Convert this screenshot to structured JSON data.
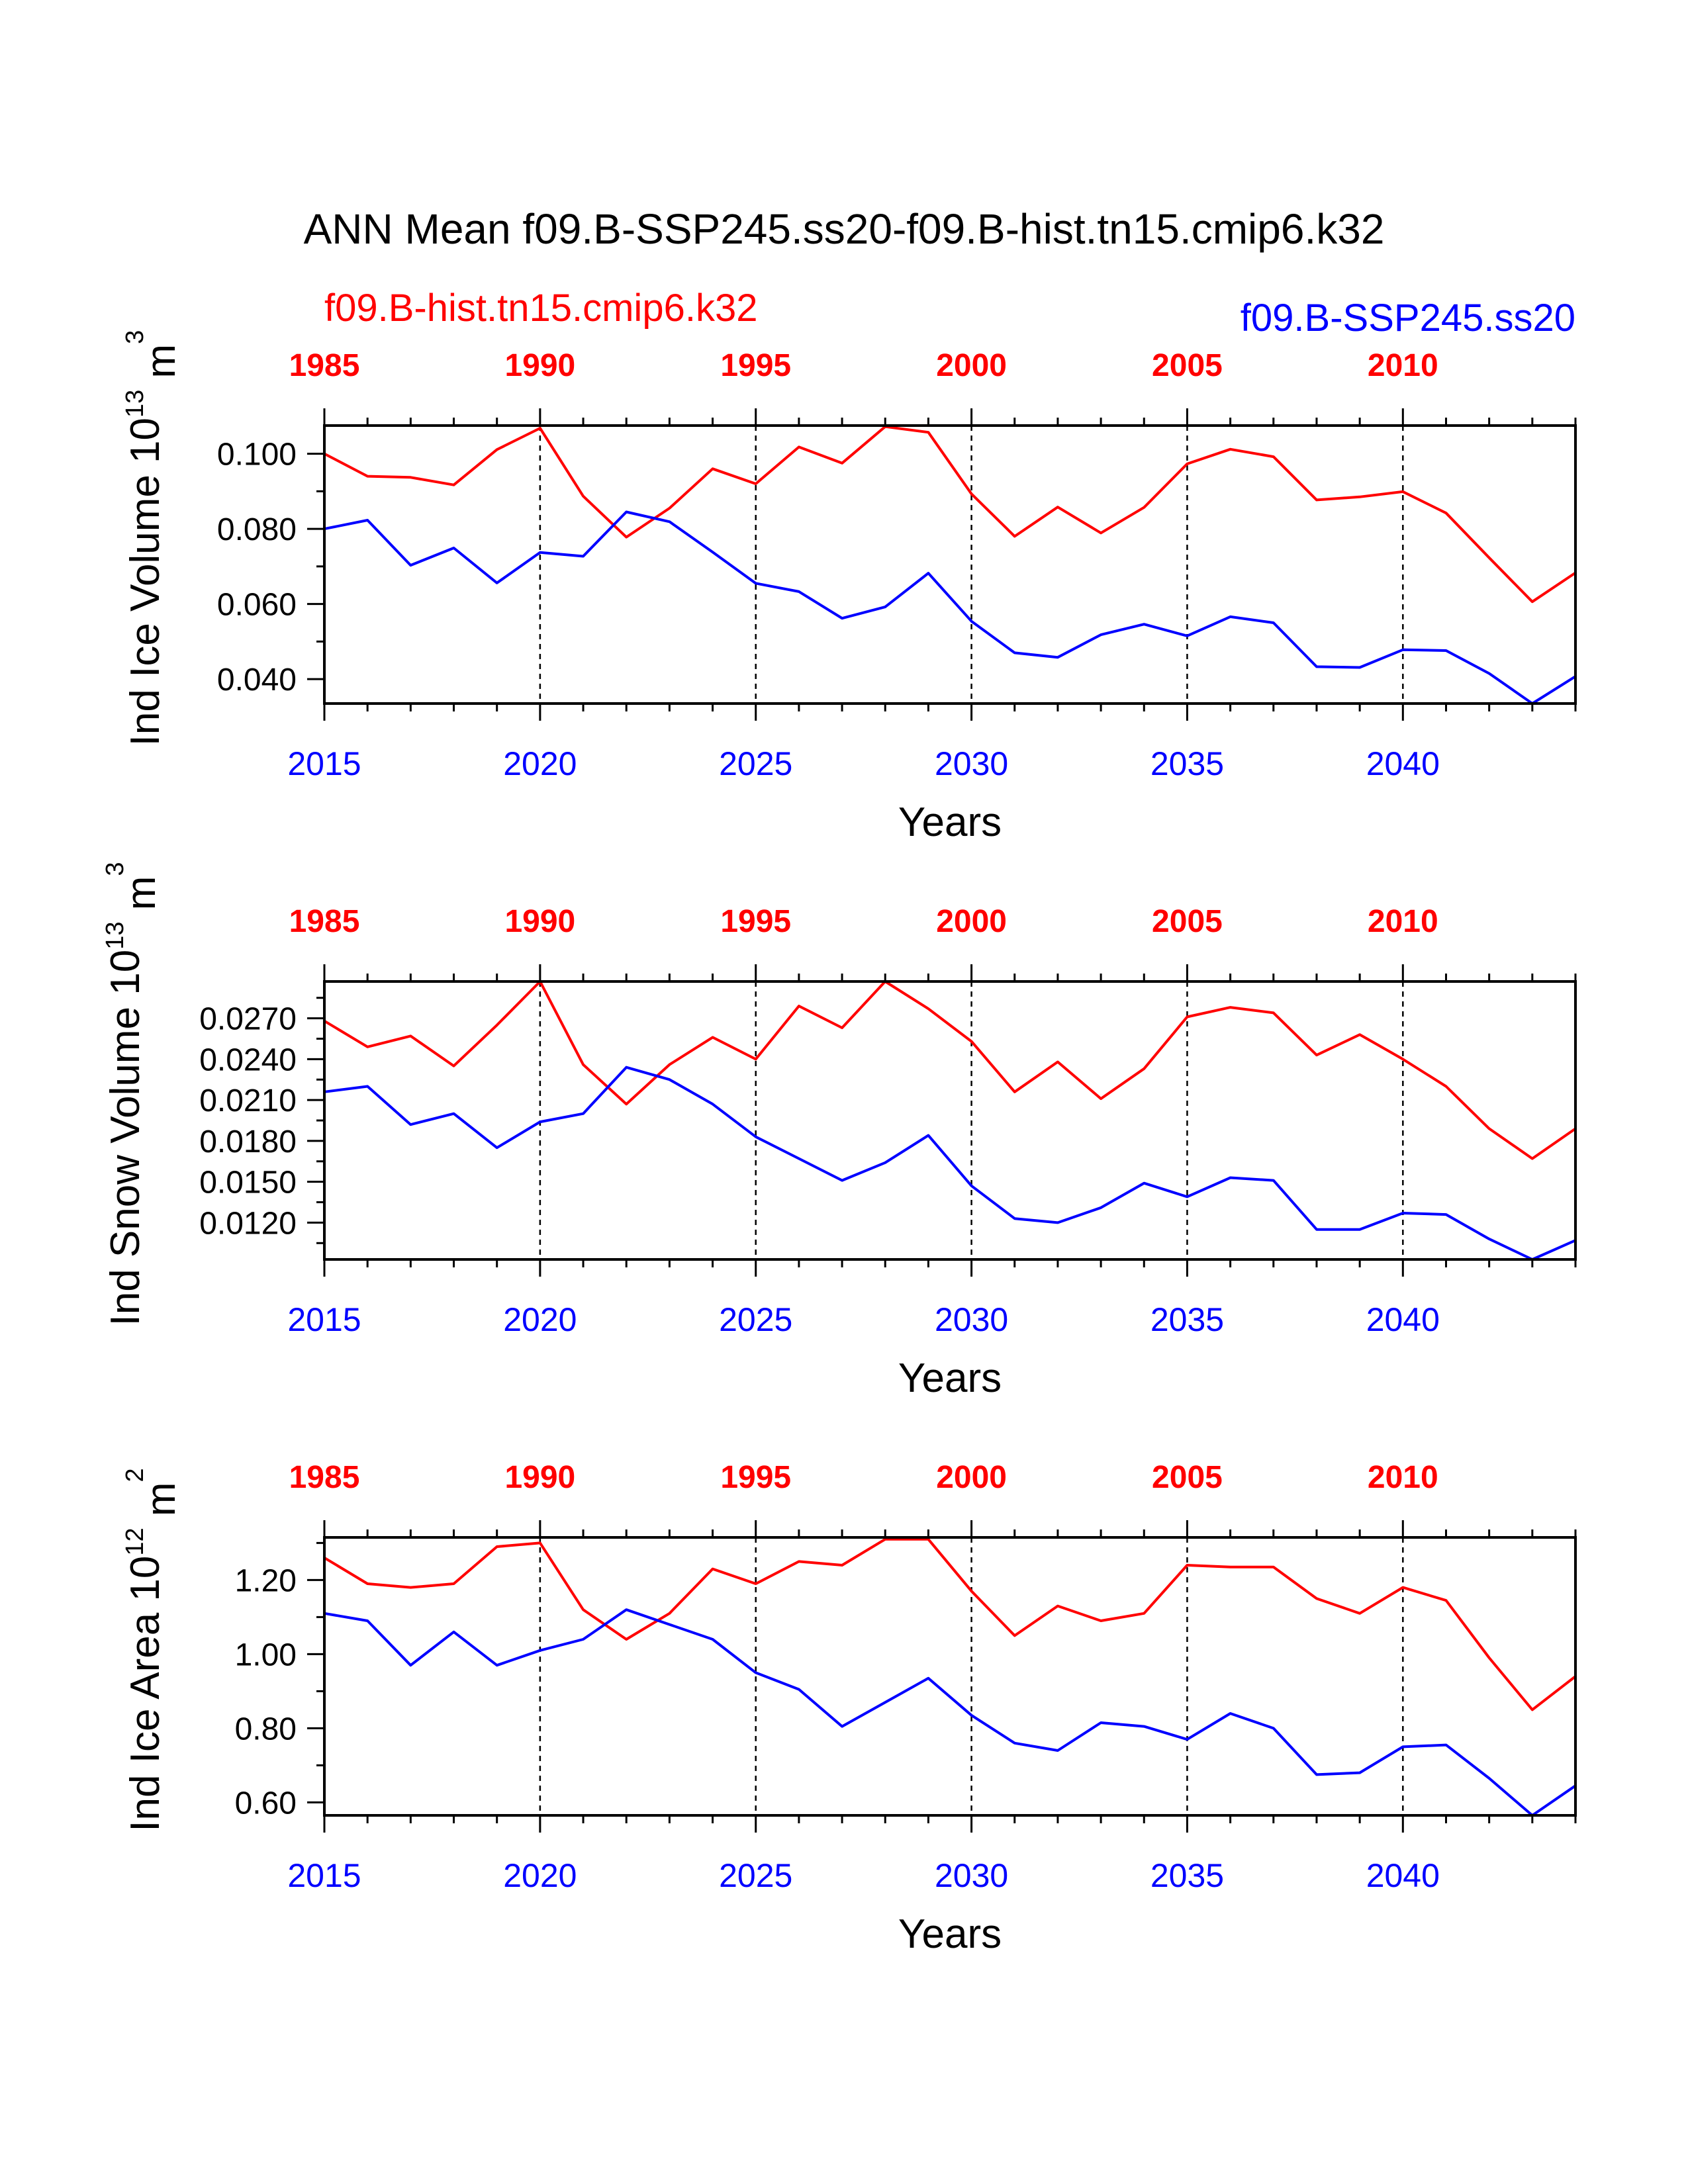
{
  "title": "ANN Mean f09.B-SSP245.ss20-f09.B-hist.tn15.cmip6.k32",
  "legend": {
    "left": "f09.B-hist.tn15.cmip6.k32",
    "right": "f09.B-SSP245.ss20"
  },
  "colors": {
    "hist": "#ff0000",
    "ssp": "#0000ff",
    "axis": "#000000"
  },
  "chart_data": [
    {
      "type": "line",
      "ylabel": "Ind Ice Volume 10",
      "ylabel_exp": "13",
      "ylabel_unit": "m",
      "ylabel_unit_exp": "3",
      "xlabel": "Years",
      "ylim": [
        0.0335,
        0.1075
      ],
      "yticks": [
        0.04,
        0.06,
        0.08,
        0.1
      ],
      "ytick_labels": [
        "0.040",
        "0.060",
        "0.080",
        "0.100"
      ],
      "x_bottom": [
        2015,
        2016,
        2017,
        2018,
        2019,
        2020,
        2021,
        2022,
        2023,
        2024,
        2025,
        2026,
        2027,
        2028,
        2029,
        2030,
        2031,
        2032,
        2033,
        2034,
        2035,
        2036,
        2037,
        2038,
        2039,
        2040,
        2041,
        2042,
        2043,
        2044
      ],
      "x_bottom_ticks": [
        "2015",
        "2020",
        "2025",
        "2030",
        "2035",
        "2040"
      ],
      "x_top_ticks": [
        "1985",
        "1990",
        "1995",
        "2000",
        "2005",
        "2010"
      ],
      "grid_x_dashed": true,
      "series": [
        {
          "name": "f09.B-hist.tn15.cmip6.k32",
          "key": "hist",
          "values": [
            0.1,
            0.094,
            0.0937,
            0.0917,
            0.1011,
            0.1068,
            0.0887,
            0.0778,
            0.0855,
            0.096,
            0.092,
            0.1018,
            0.0975,
            0.1072,
            0.1057,
            0.0893,
            0.078,
            0.0858,
            0.0789,
            0.0857,
            0.0973,
            0.1012,
            0.0992,
            0.0877,
            0.0885,
            0.0899,
            0.0842,
            0.0723,
            0.0606,
            0.0683
          ]
        },
        {
          "name": "f09.B-SSP245.ss20",
          "key": "ssp",
          "values": [
            0.08,
            0.0823,
            0.0703,
            0.0749,
            0.0656,
            0.0737,
            0.0727,
            0.0845,
            0.0819,
            0.0738,
            0.0655,
            0.0633,
            0.0562,
            0.0592,
            0.0682,
            0.0554,
            0.047,
            0.0458,
            0.0518,
            0.0546,
            0.0515,
            0.0566,
            0.055,
            0.0433,
            0.0431,
            0.0478,
            0.0476,
            0.0415,
            0.0335,
            0.0407
          ]
        }
      ]
    },
    {
      "type": "line",
      "ylabel": "Ind Snow Volume 10",
      "ylabel_exp": "13",
      "ylabel_unit": "m",
      "ylabel_unit_exp": "3",
      "xlabel": "Years",
      "ylim": [
        0.0093,
        0.0297
      ],
      "yticks": [
        0.012,
        0.015,
        0.018,
        0.021,
        0.024,
        0.027
      ],
      "ytick_labels": [
        "0.0120",
        "0.0150",
        "0.0180",
        "0.0210",
        "0.0240",
        "0.0270"
      ],
      "x_bottom": [
        2015,
        2016,
        2017,
        2018,
        2019,
        2020,
        2021,
        2022,
        2023,
        2024,
        2025,
        2026,
        2027,
        2028,
        2029,
        2030,
        2031,
        2032,
        2033,
        2034,
        2035,
        2036,
        2037,
        2038,
        2039,
        2040,
        2041,
        2042,
        2043,
        2044
      ],
      "x_bottom_ticks": [
        "2015",
        "2020",
        "2025",
        "2030",
        "2035",
        "2040"
      ],
      "x_top_ticks": [
        "1985",
        "1990",
        "1995",
        "2000",
        "2005",
        "2010"
      ],
      "grid_x_dashed": true,
      "series": [
        {
          "name": "f09.B-hist.tn15.cmip6.k32",
          "key": "hist",
          "values": [
            0.0268,
            0.0249,
            0.0257,
            0.0235,
            0.0265,
            0.0297,
            0.0236,
            0.0207,
            0.0236,
            0.0256,
            0.024,
            0.0279,
            0.0263,
            0.0297,
            0.0277,
            0.0253,
            0.0216,
            0.0238,
            0.0211,
            0.0233,
            0.0271,
            0.0278,
            0.0274,
            0.0243,
            0.0258,
            0.024,
            0.022,
            0.0189,
            0.0167,
            0.0189
          ]
        },
        {
          "name": "f09.B-SSP245.ss20",
          "key": "ssp",
          "values": [
            0.0216,
            0.022,
            0.0192,
            0.02,
            0.0175,
            0.0194,
            0.02,
            0.0234,
            0.0225,
            0.0207,
            0.0183,
            0.0167,
            0.0151,
            0.0164,
            0.0184,
            0.0147,
            0.0123,
            0.012,
            0.0131,
            0.0149,
            0.0139,
            0.0153,
            0.0151,
            0.0115,
            0.0115,
            0.0127,
            0.0126,
            0.0108,
            0.0093,
            0.0107
          ]
        }
      ]
    },
    {
      "type": "line",
      "ylabel": "Ind Ice Area 10",
      "ylabel_exp": "12",
      "ylabel_unit": "m",
      "ylabel_unit_exp": "2",
      "xlabel": "Years",
      "ylim": [
        0.565,
        1.315
      ],
      "yticks": [
        0.6,
        0.8,
        1.0,
        1.2
      ],
      "ytick_labels": [
        "0.60",
        "0.80",
        "1.00",
        "1.20"
      ],
      "x_bottom": [
        2015,
        2016,
        2017,
        2018,
        2019,
        2020,
        2021,
        2022,
        2023,
        2024,
        2025,
        2026,
        2027,
        2028,
        2029,
        2030,
        2031,
        2032,
        2033,
        2034,
        2035,
        2036,
        2037,
        2038,
        2039,
        2040,
        2041,
        2042,
        2043,
        2044
      ],
      "x_bottom_ticks": [
        "2015",
        "2020",
        "2025",
        "2030",
        "2035",
        "2040"
      ],
      "x_top_ticks": [
        "1985",
        "1990",
        "1995",
        "2000",
        "2005",
        "2010"
      ],
      "grid_x_dashed": true,
      "series": [
        {
          "name": "f09.B-hist.tn15.cmip6.k32",
          "key": "hist",
          "values": [
            1.26,
            1.19,
            1.18,
            1.19,
            1.29,
            1.3,
            1.12,
            1.04,
            1.11,
            1.23,
            1.19,
            1.25,
            1.24,
            1.31,
            1.31,
            1.17,
            1.05,
            1.13,
            1.09,
            1.11,
            1.24,
            1.235,
            1.235,
            1.15,
            1.11,
            1.18,
            1.145,
            0.99,
            0.85,
            0.94
          ]
        },
        {
          "name": "f09.B-SSP245.ss20",
          "key": "ssp",
          "values": [
            1.11,
            1.09,
            0.97,
            1.06,
            0.97,
            1.01,
            1.04,
            1.12,
            1.08,
            1.04,
            0.95,
            0.905,
            0.805,
            0.87,
            0.935,
            0.835,
            0.76,
            0.74,
            0.815,
            0.805,
            0.77,
            0.84,
            0.8,
            0.675,
            0.68,
            0.75,
            0.755,
            0.665,
            0.565,
            0.645
          ]
        }
      ]
    }
  ]
}
